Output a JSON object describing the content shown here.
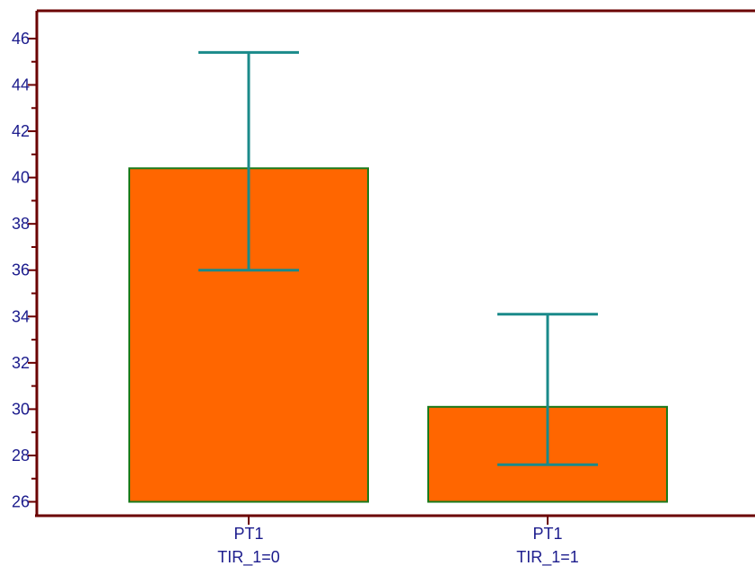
{
  "chart_data": {
    "type": "bar",
    "title": "",
    "xlabel": "",
    "ylabel": "",
    "categories": [
      {
        "line1": "PT1",
        "line2": "TIR_1=0"
      },
      {
        "line1": "PT1",
        "line2": "TIR_1=1"
      }
    ],
    "values": [
      40.4,
      30.1
    ],
    "error_low": [
      36.0,
      27.6
    ],
    "error_high": [
      45.4,
      34.1
    ],
    "baseline": 26,
    "ylim": [
      25.4,
      47.2
    ],
    "yticks": [
      26,
      28,
      30,
      32,
      34,
      36,
      38,
      40,
      42,
      44,
      46
    ],
    "grid": false,
    "colors": {
      "bar_fill": "#ff6600",
      "bar_stroke": "#1a7a1a",
      "error_bar": "#1a8a8a",
      "axis": "#6b0000",
      "text": "#1a1a8c"
    }
  }
}
